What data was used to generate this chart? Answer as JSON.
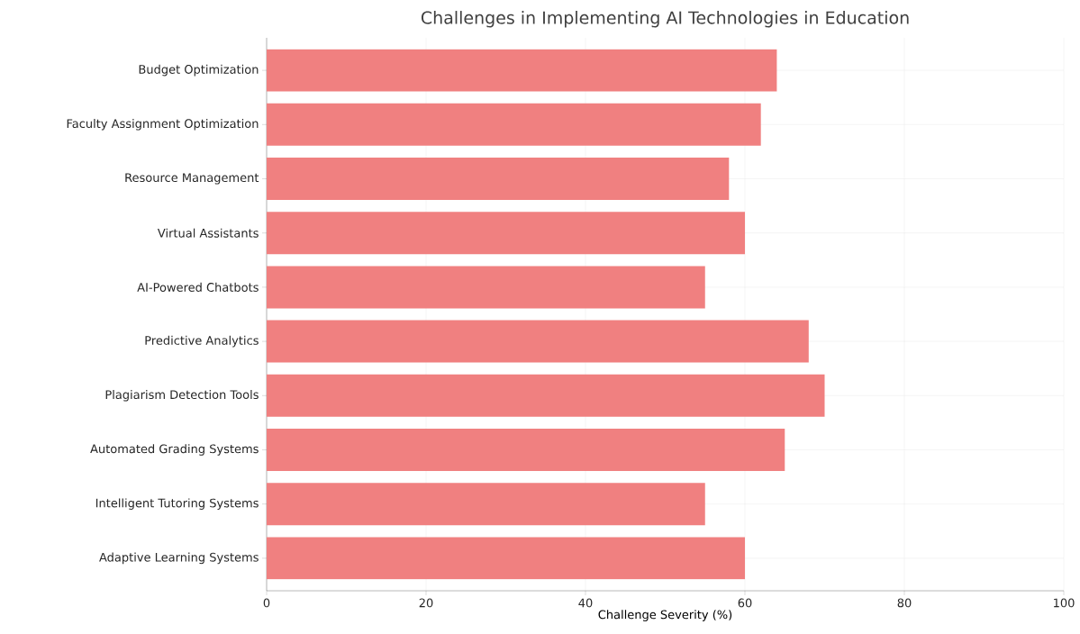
{
  "chart_data": {
    "type": "bar",
    "orientation": "horizontal",
    "title": "Challenges in Implementing AI Technologies in Education",
    "xlabel": "Challenge Severity (%)",
    "categories": [
      "Budget Optimization",
      "Faculty Assignment Optimization",
      "Resource Management",
      "Virtual Assistants",
      "AI-Powered Chatbots",
      "Predictive Analytics",
      "Plagiarism Detection Tools",
      "Automated Grading Systems",
      "Intelligent Tutoring Systems",
      "Adaptive Learning Systems"
    ],
    "values": [
      64,
      62,
      58,
      60,
      55,
      68,
      70,
      65,
      55,
      60
    ],
    "color": "#f08080",
    "xlim": [
      0,
      100
    ],
    "xticks": [
      0,
      20,
      40,
      60,
      80,
      100
    ],
    "grid": true
  }
}
